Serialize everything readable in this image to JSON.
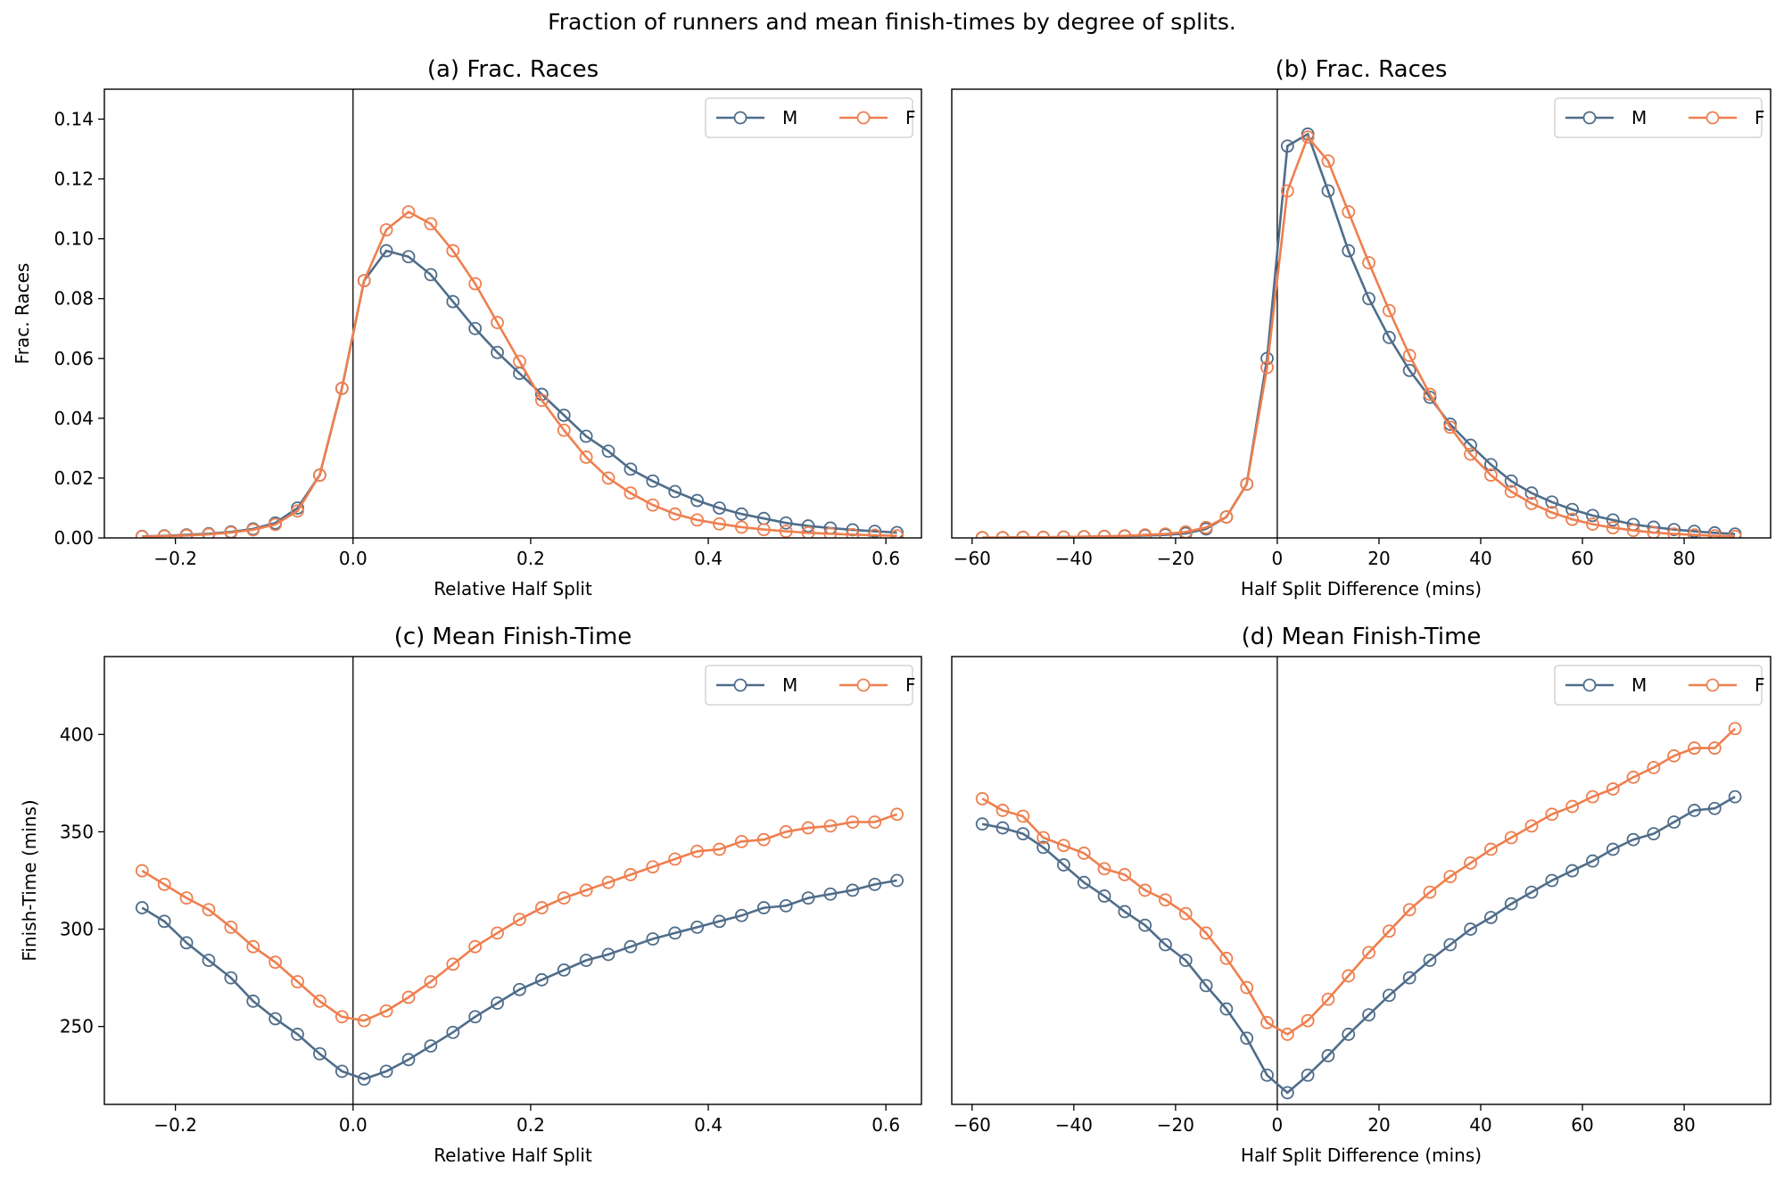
{
  "figure": {
    "title": "Fraction of runners and mean finish-times by degree of splits."
  },
  "colors": {
    "M": "#4f6d8a",
    "F": "#ee7f4f"
  },
  "chart_data": [
    {
      "type": "line",
      "title": "(a) Frac. Races",
      "xlabel": "Relative Half Split",
      "ylabel": "Frac. Races",
      "xlim": [
        -0.28,
        0.64
      ],
      "ylim": [
        0,
        0.15
      ],
      "xticks": [
        -0.2,
        0.0,
        0.2,
        0.4,
        0.6
      ],
      "xtick_labels": [
        "−0.2",
        "0.0",
        "0.2",
        "0.4",
        "0.6"
      ],
      "yticks": [
        0,
        0.02,
        0.04,
        0.06,
        0.08,
        0.1,
        0.12,
        0.14
      ],
      "ytick_labels": [
        "0.00",
        "0.02",
        "0.04",
        "0.06",
        "0.08",
        "0.10",
        "0.12",
        "0.14"
      ],
      "vline": 0,
      "legend_position": "top-right",
      "x": [
        -0.2375,
        -0.2125,
        -0.1875,
        -0.1625,
        -0.1375,
        -0.1125,
        -0.0875,
        -0.0625,
        -0.0375,
        -0.0125,
        0.0125,
        0.0375,
        0.0625,
        0.0875,
        0.1125,
        0.1375,
        0.1625,
        0.1875,
        0.2125,
        0.2375,
        0.2625,
        0.2875,
        0.3125,
        0.3375,
        0.3625,
        0.3875,
        0.4125,
        0.4375,
        0.4625,
        0.4875,
        0.5125,
        0.5375,
        0.5625,
        0.5875,
        0.6125
      ],
      "series": [
        {
          "name": "M",
          "values": [
            0.0005,
            0.0007,
            0.001,
            0.0014,
            0.002,
            0.003,
            0.005,
            0.01,
            0.021,
            0.05,
            0.086,
            0.096,
            0.094,
            0.088,
            0.079,
            0.07,
            0.062,
            0.055,
            0.048,
            0.041,
            0.034,
            0.029,
            0.023,
            0.019,
            0.0155,
            0.0125,
            0.01,
            0.008,
            0.0065,
            0.005,
            0.004,
            0.0033,
            0.0027,
            0.0022,
            0.0018
          ]
        },
        {
          "name": "F",
          "values": [
            0.0004,
            0.0006,
            0.0008,
            0.0012,
            0.0018,
            0.0027,
            0.0045,
            0.009,
            0.021,
            0.05,
            0.086,
            0.103,
            0.109,
            0.105,
            0.096,
            0.085,
            0.072,
            0.059,
            0.046,
            0.036,
            0.027,
            0.02,
            0.015,
            0.011,
            0.008,
            0.006,
            0.0047,
            0.0036,
            0.0028,
            0.0022,
            0.0017,
            0.0014,
            0.0011,
            0.0009,
            0.0007
          ]
        }
      ]
    },
    {
      "type": "line",
      "title": "(b) Frac. Races",
      "xlabel": "Half Split Difference (mins)",
      "ylabel": "",
      "xlim": [
        -64,
        97
      ],
      "ylim": [
        0,
        0.15
      ],
      "xticks": [
        -60,
        -40,
        -20,
        0,
        20,
        40,
        60,
        80
      ],
      "xtick_labels": [
        "−60",
        "−40",
        "−20",
        "0",
        "20",
        "40",
        "60",
        "80"
      ],
      "yticks": [],
      "ytick_labels": [],
      "vline": 0,
      "legend_position": "top-right",
      "x": [
        -58,
        -54,
        -50,
        -46,
        -42,
        -38,
        -34,
        -30,
        -26,
        -22,
        -18,
        -14,
        -10,
        -6,
        -2,
        2,
        6,
        10,
        14,
        18,
        22,
        26,
        30,
        34,
        38,
        42,
        46,
        50,
        54,
        58,
        62,
        66,
        70,
        74,
        78,
        82,
        86,
        90
      ],
      "series": [
        {
          "name": "M",
          "values": [
            0.0001,
            0.0001,
            0.0002,
            0.0002,
            0.0003,
            0.0004,
            0.0005,
            0.0006,
            0.0008,
            0.001,
            0.0015,
            0.003,
            0.007,
            0.018,
            0.06,
            0.131,
            0.135,
            0.116,
            0.096,
            0.08,
            0.067,
            0.056,
            0.047,
            0.038,
            0.031,
            0.0245,
            0.019,
            0.015,
            0.012,
            0.0095,
            0.0075,
            0.006,
            0.0045,
            0.0036,
            0.0028,
            0.0022,
            0.0017,
            0.0013
          ]
        },
        {
          "name": "F",
          "values": [
            0.0001,
            0.0001,
            0.0002,
            0.0002,
            0.0003,
            0.0004,
            0.0005,
            0.0007,
            0.001,
            0.0013,
            0.002,
            0.0035,
            0.007,
            0.018,
            0.057,
            0.116,
            0.134,
            0.126,
            0.109,
            0.092,
            0.076,
            0.061,
            0.048,
            0.037,
            0.028,
            0.021,
            0.0155,
            0.0115,
            0.0085,
            0.0062,
            0.0046,
            0.0034,
            0.0025,
            0.0018,
            0.0013,
            0.001,
            0.0007,
            0.0005
          ]
        }
      ]
    },
    {
      "type": "line",
      "title": "(c) Mean Finish-Time",
      "xlabel": "Relative Half Split",
      "ylabel": "Finish-Time (mins)",
      "xlim": [
        -0.28,
        0.64
      ],
      "ylim": [
        210,
        440
      ],
      "xticks": [
        -0.2,
        0.0,
        0.2,
        0.4,
        0.6
      ],
      "xtick_labels": [
        "−0.2",
        "0.0",
        "0.2",
        "0.4",
        "0.6"
      ],
      "yticks": [
        250,
        300,
        350,
        400
      ],
      "ytick_labels": [
        "250",
        "300",
        "350",
        "400"
      ],
      "vline": 0,
      "legend_position": "top-right",
      "x": [
        -0.2375,
        -0.2125,
        -0.1875,
        -0.1625,
        -0.1375,
        -0.1125,
        -0.0875,
        -0.0625,
        -0.0375,
        -0.0125,
        0.0125,
        0.0375,
        0.0625,
        0.0875,
        0.1125,
        0.1375,
        0.1625,
        0.1875,
        0.2125,
        0.2375,
        0.2625,
        0.2875,
        0.3125,
        0.3375,
        0.3625,
        0.3875,
        0.4125,
        0.4375,
        0.4625,
        0.4875,
        0.5125,
        0.5375,
        0.5625,
        0.5875,
        0.6125
      ],
      "series": [
        {
          "name": "M",
          "values": [
            311,
            304,
            293,
            284,
            275,
            263,
            254,
            246,
            236,
            227,
            223,
            227,
            233,
            240,
            247,
            255,
            262,
            269,
            274,
            279,
            284,
            287,
            291,
            295,
            298,
            301,
            304,
            307,
            311,
            312,
            316,
            318,
            320,
            323,
            325
          ]
        },
        {
          "name": "F",
          "values": [
            330,
            323,
            316,
            310,
            301,
            291,
            283,
            273,
            263,
            255,
            253,
            258,
            265,
            273,
            282,
            291,
            298,
            305,
            311,
            316,
            320,
            324,
            328,
            332,
            336,
            340,
            341,
            345,
            346,
            350,
            352,
            353,
            355,
            355,
            359
          ]
        }
      ]
    },
    {
      "type": "line",
      "title": "(d) Mean Finish-Time",
      "xlabel": "Half Split Difference (mins)",
      "ylabel": "",
      "xlim": [
        -64,
        97
      ],
      "ylim": [
        210,
        440
      ],
      "xticks": [
        -60,
        -40,
        -20,
        0,
        20,
        40,
        60,
        80
      ],
      "xtick_labels": [
        "−60",
        "−40",
        "−20",
        "0",
        "20",
        "40",
        "60",
        "80"
      ],
      "yticks": [],
      "ytick_labels": [],
      "vline": 0,
      "legend_position": "top-right",
      "x": [
        -58,
        -54,
        -50,
        -46,
        -42,
        -38,
        -34,
        -30,
        -26,
        -22,
        -18,
        -14,
        -10,
        -6,
        -2,
        2,
        6,
        10,
        14,
        18,
        22,
        26,
        30,
        34,
        38,
        42,
        46,
        50,
        54,
        58,
        62,
        66,
        70,
        74,
        78,
        82,
        86,
        90
      ],
      "series": [
        {
          "name": "M",
          "values": [
            354,
            352,
            349,
            342,
            333,
            324,
            317,
            309,
            302,
            292,
            284,
            271,
            259,
            244,
            225,
            216,
            225,
            235,
            246,
            256,
            266,
            275,
            284,
            292,
            300,
            306,
            313,
            319,
            325,
            330,
            335,
            341,
            346,
            349,
            355,
            361,
            362,
            368
          ]
        },
        {
          "name": "F",
          "values": [
            367,
            361,
            358,
            347,
            343,
            339,
            331,
            328,
            320,
            315,
            308,
            298,
            285,
            270,
            252,
            246,
            253,
            264,
            276,
            288,
            299,
            310,
            319,
            327,
            334,
            341,
            347,
            353,
            359,
            363,
            368,
            372,
            378,
            383,
            389,
            393,
            393,
            403
          ]
        }
      ]
    }
  ]
}
